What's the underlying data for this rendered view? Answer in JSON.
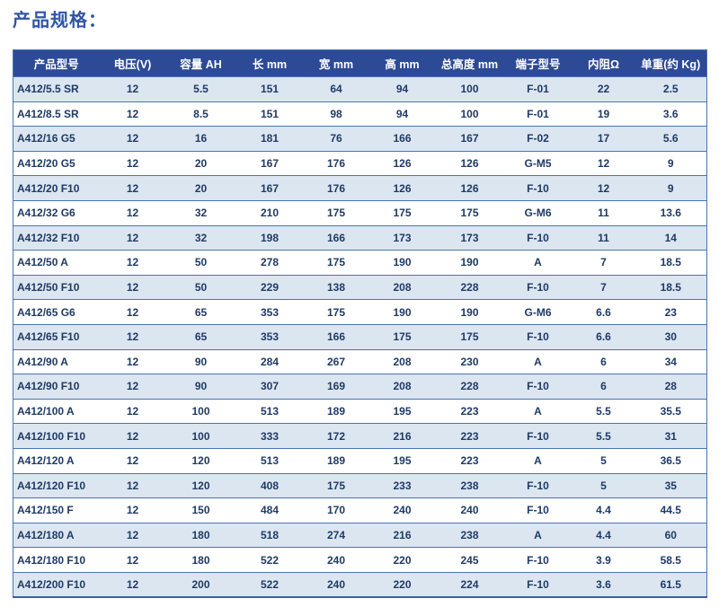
{
  "page": {
    "title": "产品规格："
  },
  "theme": {
    "page_bg": "#ffffff",
    "title": "#2f55a4",
    "header_bg": "#2d4a96",
    "header_text": "#ffffff",
    "row_alt_bg": "#dce6f1",
    "row_bg": "#ffffff",
    "border": "#4a73b6",
    "border_strong": "#3a5ea8",
    "text": "#1f3a66"
  },
  "table": {
    "columns": [
      "产品型号",
      "电压(V)",
      "容量 AH",
      "长 mm",
      "宽 mm",
      "高 mm",
      "总高度 mm",
      "端子型号",
      "内阻Ω",
      "单重(约 Kg)"
    ],
    "rows": [
      [
        "A412/5.5 SR",
        "12",
        "5.5",
        "151",
        "64",
        "94",
        "100",
        "F-01",
        "22",
        "2.5"
      ],
      [
        "A412/8.5 SR",
        "12",
        "8.5",
        "151",
        "98",
        "94",
        "100",
        "F-01",
        "19",
        "3.6"
      ],
      [
        "A412/16 G5",
        "12",
        "16",
        "181",
        "76",
        "166",
        "167",
        "F-02",
        "17",
        "5.6"
      ],
      [
        "A412/20 G5",
        "12",
        "20",
        "167",
        "176",
        "126",
        "126",
        "G-M5",
        "12",
        "9"
      ],
      [
        "A412/20 F10",
        "12",
        "20",
        "167",
        "176",
        "126",
        "126",
        "F-10",
        "12",
        "9"
      ],
      [
        "A412/32 G6",
        "12",
        "32",
        "210",
        "175",
        "175",
        "175",
        "G-M6",
        "11",
        "13.6"
      ],
      [
        "A412/32 F10",
        "12",
        "32",
        "198",
        "166",
        "173",
        "173",
        "F-10",
        "11",
        "14"
      ],
      [
        "A412/50 A",
        "12",
        "50",
        "278",
        "175",
        "190",
        "190",
        "A",
        "7",
        "18.5"
      ],
      [
        "A412/50 F10",
        "12",
        "50",
        "229",
        "138",
        "208",
        "228",
        "F-10",
        "7",
        "18.5"
      ],
      [
        "A412/65 G6",
        "12",
        "65",
        "353",
        "175",
        "190",
        "190",
        "G-M6",
        "6.6",
        "23"
      ],
      [
        "A412/65 F10",
        "12",
        "65",
        "353",
        "166",
        "175",
        "175",
        "F-10",
        "6.6",
        "30"
      ],
      [
        "A412/90 A",
        "12",
        "90",
        "284",
        "267",
        "208",
        "230",
        "A",
        "6",
        "34"
      ],
      [
        "A412/90 F10",
        "12",
        "90",
        "307",
        "169",
        "208",
        "228",
        "F-10",
        "6",
        "28"
      ],
      [
        "A412/100 A",
        "12",
        "100",
        "513",
        "189",
        "195",
        "223",
        "A",
        "5.5",
        "35.5"
      ],
      [
        "A412/100 F10",
        "12",
        "100",
        "333",
        "172",
        "216",
        "223",
        "F-10",
        "5.5",
        "31"
      ],
      [
        "A412/120 A",
        "12",
        "120",
        "513",
        "189",
        "195",
        "223",
        "A",
        "5",
        "36.5"
      ],
      [
        "A412/120 F10",
        "12",
        "120",
        "408",
        "175",
        "233",
        "238",
        "F-10",
        "5",
        "35"
      ],
      [
        "A412/150 F",
        "12",
        "150",
        "484",
        "170",
        "240",
        "240",
        "F-10",
        "4.4",
        "44.5"
      ],
      [
        "A412/180 A",
        "12",
        "180",
        "518",
        "274",
        "216",
        "238",
        "A",
        "4.4",
        "60"
      ],
      [
        "A412/180 F10",
        "12",
        "180",
        "522",
        "240",
        "220",
        "245",
        "F-10",
        "3.9",
        "58.5"
      ],
      [
        "A412/200 F10",
        "12",
        "200",
        "522",
        "240",
        "220",
        "224",
        "F-10",
        "3.6",
        "61.5"
      ]
    ]
  }
}
